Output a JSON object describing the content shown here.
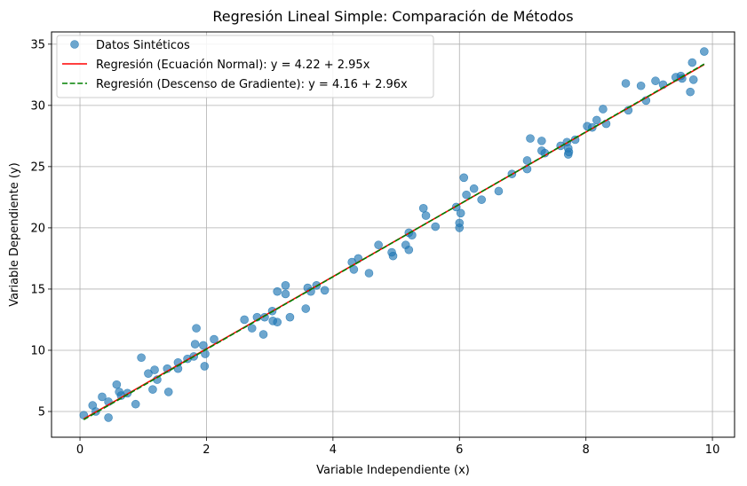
{
  "chart_data": {
    "type": "scatter",
    "title": "Regresión Lineal Simple: Comparación de Métodos",
    "xlabel": "Variable Independiente (x)",
    "ylabel": "Variable Dependiente (y)",
    "xlim": [
      -0.45,
      10.35
    ],
    "ylim": [
      2.9,
      36.0
    ],
    "xticks": [
      0,
      2,
      4,
      6,
      8,
      10
    ],
    "yticks": [
      5,
      10,
      15,
      20,
      25,
      30,
      35
    ],
    "grid": true,
    "legend_position": "top-left",
    "series": [
      {
        "name": "Datos Sintéticos",
        "kind": "scatter",
        "color": "#1f77b4",
        "points": [
          [
            0.06,
            4.7
          ],
          [
            0.2,
            5.5
          ],
          [
            0.25,
            5.0
          ],
          [
            0.35,
            6.2
          ],
          [
            0.45,
            4.5
          ],
          [
            0.45,
            5.8
          ],
          [
            0.58,
            7.2
          ],
          [
            0.62,
            6.6
          ],
          [
            0.65,
            6.3
          ],
          [
            0.75,
            6.5
          ],
          [
            0.88,
            5.6
          ],
          [
            0.97,
            9.4
          ],
          [
            1.08,
            8.1
          ],
          [
            1.15,
            6.8
          ],
          [
            1.18,
            8.4
          ],
          [
            1.22,
            7.6
          ],
          [
            1.38,
            8.5
          ],
          [
            1.4,
            6.6
          ],
          [
            1.55,
            9.0
          ],
          [
            1.55,
            8.5
          ],
          [
            1.7,
            9.3
          ],
          [
            1.8,
            9.5
          ],
          [
            1.82,
            10.5
          ],
          [
            1.84,
            11.8
          ],
          [
            1.95,
            10.4
          ],
          [
            1.97,
            8.7
          ],
          [
            1.98,
            9.7
          ],
          [
            2.12,
            10.9
          ],
          [
            2.6,
            12.5
          ],
          [
            2.72,
            11.8
          ],
          [
            2.8,
            12.7
          ],
          [
            2.9,
            11.3
          ],
          [
            2.92,
            12.7
          ],
          [
            3.04,
            13.2
          ],
          [
            3.05,
            12.4
          ],
          [
            3.12,
            12.3
          ],
          [
            3.12,
            14.8
          ],
          [
            3.25,
            15.3
          ],
          [
            3.25,
            14.6
          ],
          [
            3.32,
            12.7
          ],
          [
            3.57,
            13.4
          ],
          [
            3.6,
            15.1
          ],
          [
            3.65,
            14.8
          ],
          [
            3.74,
            15.3
          ],
          [
            3.87,
            14.9
          ],
          [
            4.3,
            17.2
          ],
          [
            4.33,
            16.6
          ],
          [
            4.4,
            17.5
          ],
          [
            4.57,
            16.3
          ],
          [
            4.72,
            18.6
          ],
          [
            4.93,
            18.0
          ],
          [
            4.95,
            17.7
          ],
          [
            5.15,
            18.6
          ],
          [
            5.2,
            18.2
          ],
          [
            5.2,
            19.6
          ],
          [
            5.25,
            19.4
          ],
          [
            5.43,
            21.6
          ],
          [
            5.47,
            21.0
          ],
          [
            5.62,
            20.1
          ],
          [
            5.95,
            21.7
          ],
          [
            6.0,
            20.4
          ],
          [
            6.0,
            20.0
          ],
          [
            6.02,
            21.2
          ],
          [
            6.07,
            24.1
          ],
          [
            6.11,
            22.7
          ],
          [
            6.23,
            23.2
          ],
          [
            6.35,
            22.3
          ],
          [
            6.62,
            23.0
          ],
          [
            6.83,
            24.4
          ],
          [
            7.07,
            25.5
          ],
          [
            7.07,
            24.8
          ],
          [
            7.12,
            27.3
          ],
          [
            7.3,
            27.1
          ],
          [
            7.3,
            26.3
          ],
          [
            7.35,
            26.1
          ],
          [
            7.6,
            26.7
          ],
          [
            7.7,
            27.0
          ],
          [
            7.72,
            26.5
          ],
          [
            7.72,
            26.0
          ],
          [
            7.73,
            26.2
          ],
          [
            7.83,
            27.2
          ],
          [
            8.02,
            28.3
          ],
          [
            8.1,
            28.2
          ],
          [
            8.17,
            28.8
          ],
          [
            8.27,
            29.7
          ],
          [
            8.32,
            28.5
          ],
          [
            8.63,
            31.8
          ],
          [
            8.67,
            29.6
          ],
          [
            8.87,
            31.6
          ],
          [
            8.95,
            30.4
          ],
          [
            9.1,
            32.0
          ],
          [
            9.22,
            31.7
          ],
          [
            9.42,
            32.3
          ],
          [
            9.5,
            32.4
          ],
          [
            9.52,
            32.2
          ],
          [
            9.65,
            31.1
          ],
          [
            9.68,
            33.5
          ],
          [
            9.7,
            32.1
          ],
          [
            9.87,
            34.4
          ]
        ]
      },
      {
        "name": "Regresión (Ecuación Normal): y = 4.22 + 2.95x",
        "kind": "line",
        "color": "#ff0000",
        "dash": "solid",
        "intercept": 4.22,
        "slope": 2.95,
        "x_range": [
          0.06,
          9.87
        ]
      },
      {
        "name": "Regresión (Descenso de Gradiente): y = 4.16 + 2.96x",
        "kind": "line",
        "color": "#008000",
        "dash": "dashed",
        "intercept": 4.16,
        "slope": 2.96,
        "x_range": [
          0.06,
          9.87
        ]
      }
    ]
  }
}
